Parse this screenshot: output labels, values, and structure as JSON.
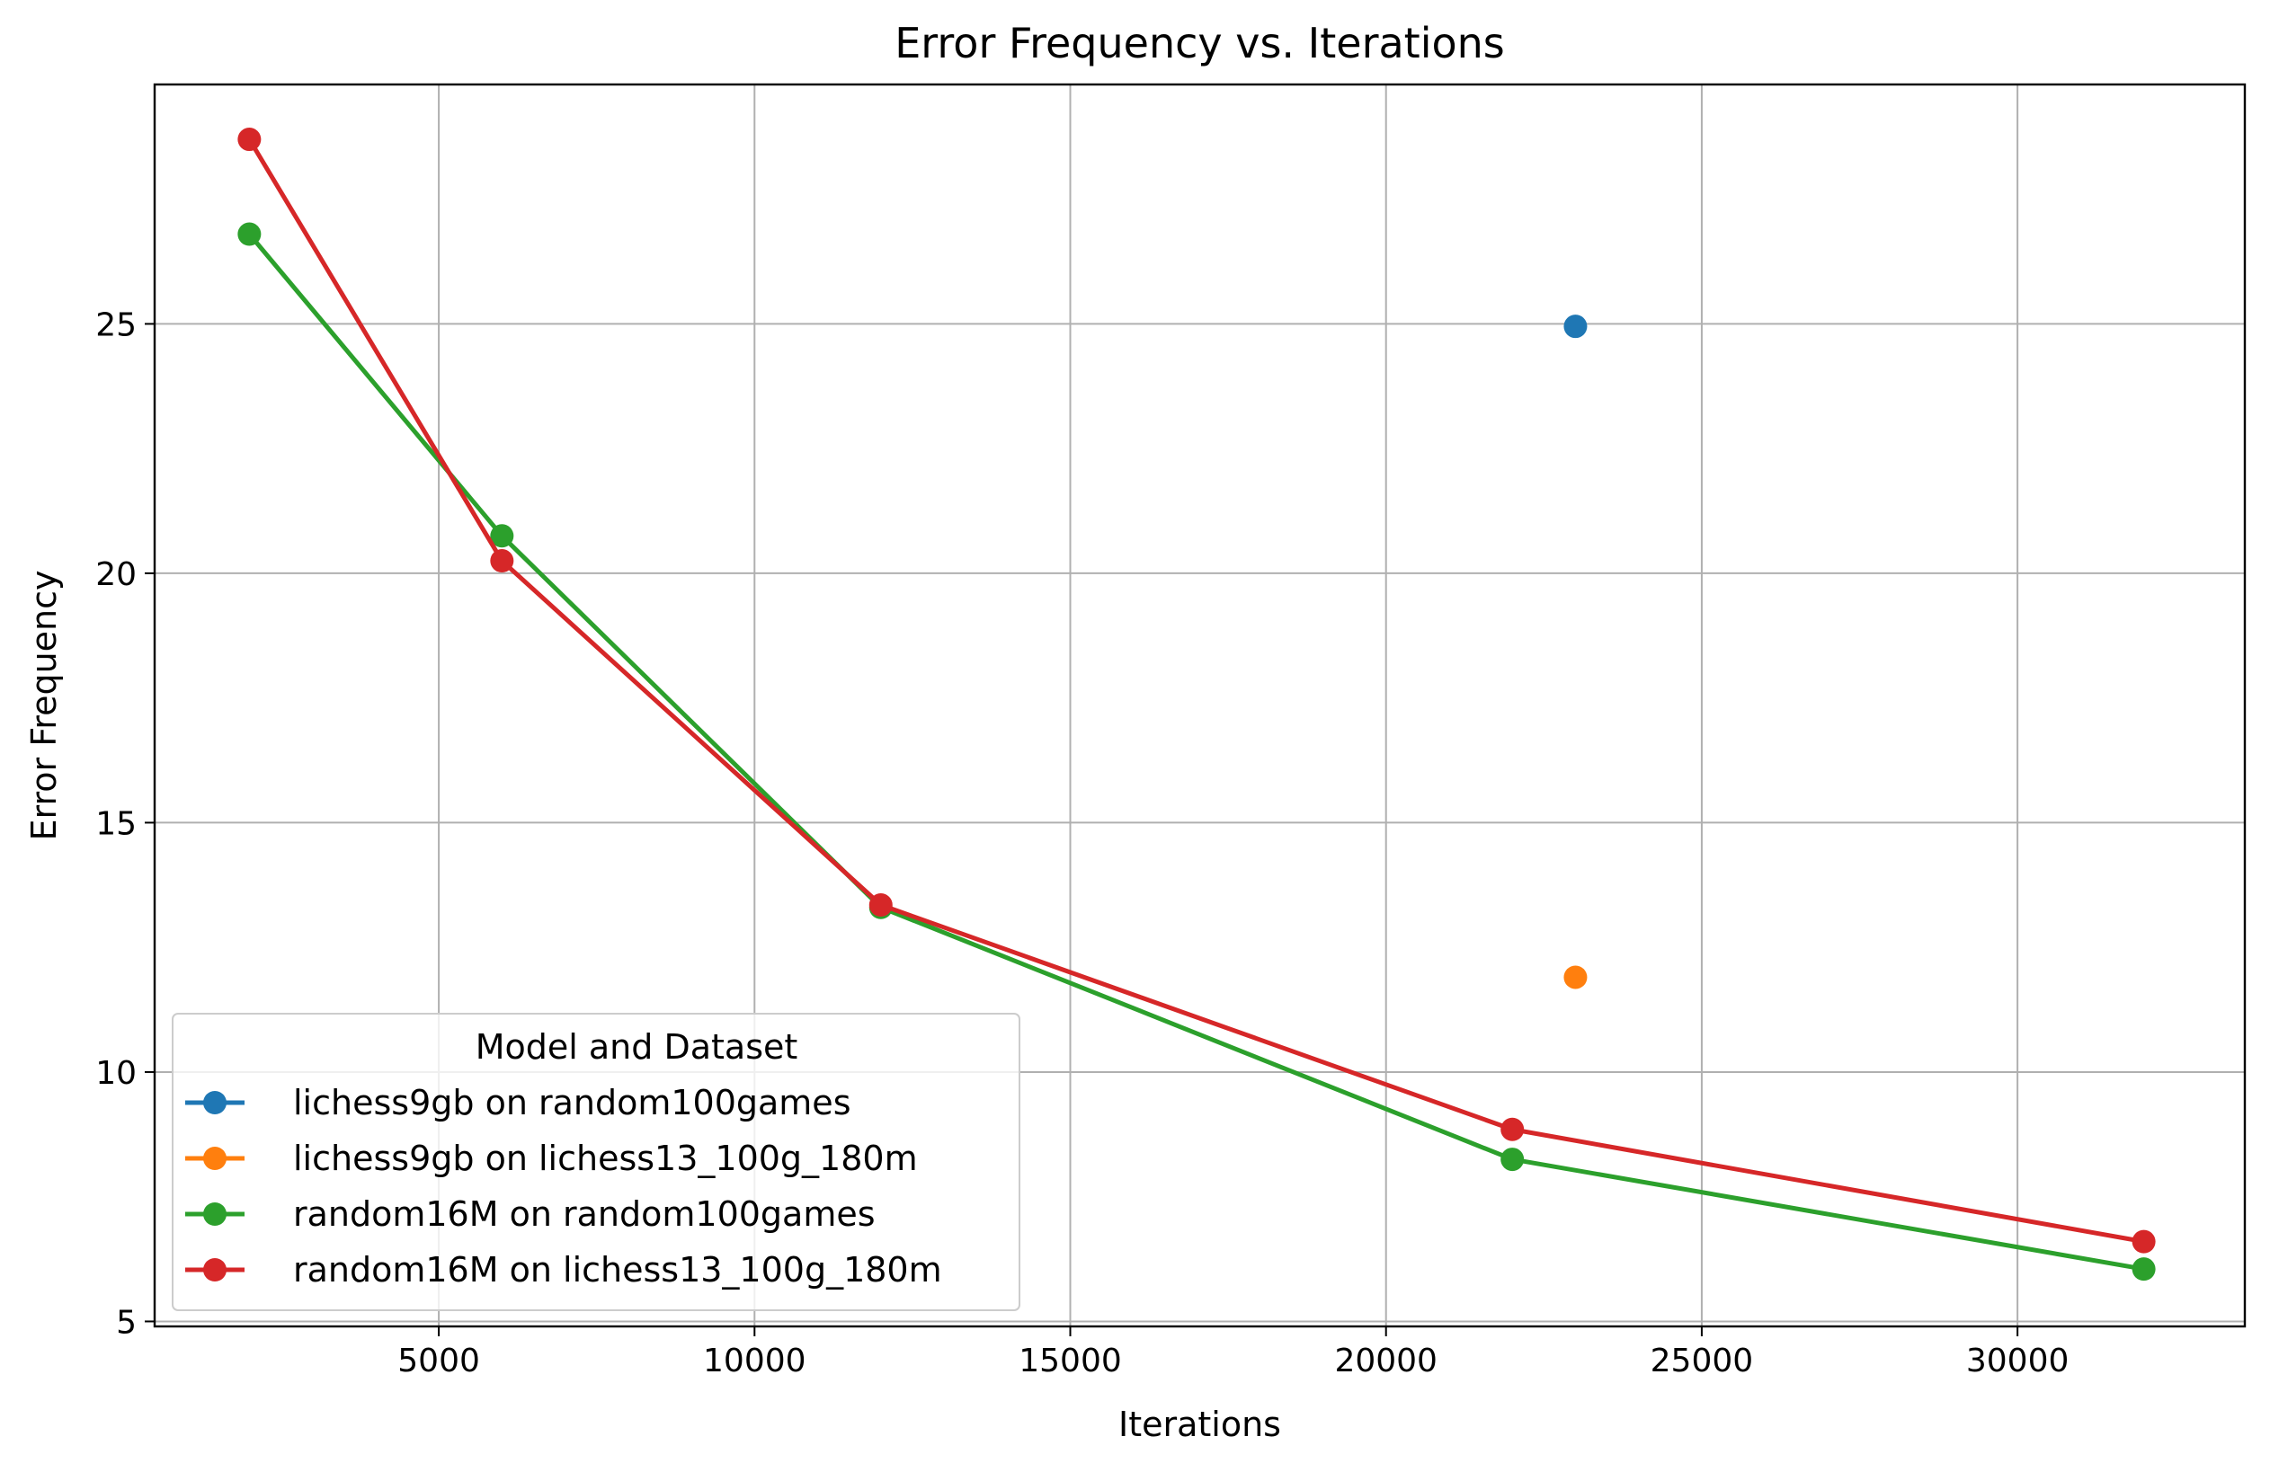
{
  "chart_data": {
    "type": "line",
    "title": "Error Frequency vs. Iterations",
    "xlabel": "Iterations",
    "ylabel": "Error Frequency",
    "xlim": [
      500,
      33600
    ],
    "ylim": [
      4.9,
      29.8
    ],
    "xticks": [
      5000,
      10000,
      15000,
      20000,
      25000,
      30000
    ],
    "yticks": [
      5,
      10,
      15,
      20,
      25
    ],
    "grid": true,
    "legend_title": "Model and Dataset",
    "legend_position": "lower-left",
    "series": [
      {
        "name": "lichess9gb on random100games",
        "color": "#1f77b4",
        "x": [
          23000
        ],
        "y": [
          24.95
        ]
      },
      {
        "name": "lichess9gb on lichess13_100g_180m",
        "color": "#ff7f0e",
        "x": [
          23000
        ],
        "y": [
          11.9
        ]
      },
      {
        "name": "random16M on random100games",
        "color": "#2ca02c",
        "x": [
          2000,
          6000,
          12000,
          22000,
          32000
        ],
        "y": [
          26.8,
          20.75,
          13.3,
          8.25,
          6.05
        ]
      },
      {
        "name": "random16M on lichess13_100g_180m",
        "color": "#d62728",
        "x": [
          2000,
          6000,
          12000,
          22000,
          32000
        ],
        "y": [
          28.7,
          20.25,
          13.35,
          8.85,
          6.6
        ]
      }
    ]
  }
}
